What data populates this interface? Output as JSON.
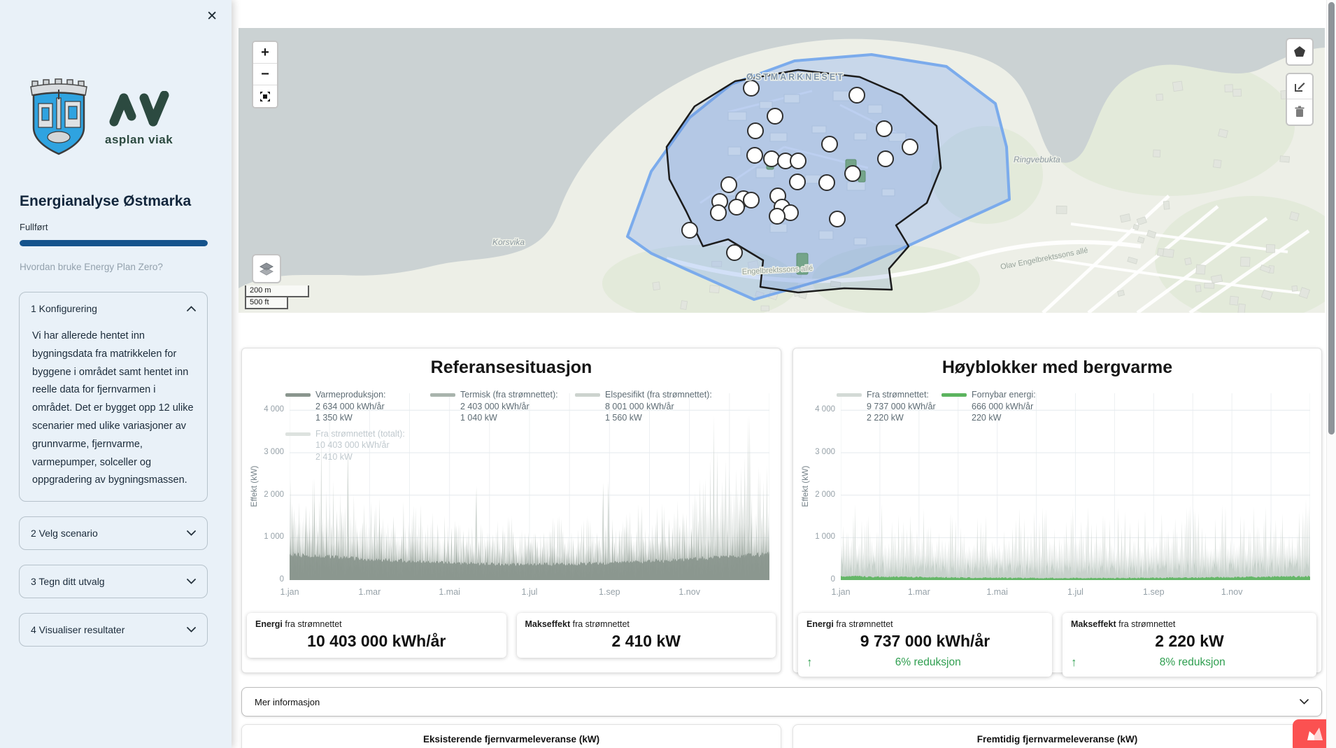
{
  "sidebar": {
    "close_label": "✕",
    "brand_logo_text": "asplan viak",
    "title": "Energianalyse Østmarka",
    "status_label": "Fullført",
    "progress_percent": 100,
    "help_link": "Hvordan bruke Energy Plan Zero?",
    "accordions": [
      {
        "label": "1 Konfigurering",
        "expanded": true,
        "body": "Vi har allerede hentet inn bygningsdata fra matrikkelen for byggene i området samt hentet inn reelle data for fjernvarmen i området. Det er bygget opp 12 ulike scenarier med ulike variasjoner av grunnvarme, fjernvarme, varmepumper, solceller og oppgradering av bygningsmassen."
      },
      {
        "label": "2 Velg scenario",
        "expanded": false,
        "body": ""
      },
      {
        "label": "3 Tegn ditt utvalg",
        "expanded": false,
        "body": ""
      },
      {
        "label": "4 Visualiser resultater",
        "expanded": false,
        "body": ""
      }
    ]
  },
  "map": {
    "zoom_in_label": "+",
    "zoom_out_label": "−",
    "scale_bar": {
      "metric": "200 m",
      "imperial": "500 ft"
    },
    "place_labels": [
      {
        "text": "ØSTMARKNESET",
        "kind": "area"
      },
      {
        "text": "Ringvebukta",
        "kind": "water"
      },
      {
        "text": "Korsvika",
        "kind": "water"
      },
      {
        "text": "Engelbrektssons allé",
        "kind": "street"
      },
      {
        "text": "Olav Engelbrektssons allé",
        "kind": "street"
      }
    ],
    "marker_count": 28,
    "selection_color": "#7babec"
  },
  "chart_data": [
    {
      "type": "area",
      "title": "Referansesituasjon",
      "ylabel": "Effekt (kW)",
      "ylim": [
        0,
        4400
      ],
      "yticks": [
        "0",
        "1 000",
        "2 000",
        "3 000",
        "4 000"
      ],
      "ytick_values": [
        0,
        1000,
        2000,
        3000,
        4000
      ],
      "xticks": [
        "1.jan",
        "1.mar",
        "1.mai",
        "1.jul",
        "1.sep",
        "1.nov"
      ],
      "grid": true,
      "legend_position": "top",
      "series": [
        {
          "name": "Varmeproduksjon:",
          "annual_energy": "2 634 000 kWh/år",
          "peak_power": "1 350 kW",
          "color": "#8a968e",
          "enabled": true
        },
        {
          "name": "Termisk (fra strømnettet):",
          "annual_energy": "2 403 000 kWh/år",
          "peak_power": "1 040 kW",
          "color": "#a9b4ad",
          "enabled": true
        },
        {
          "name": "Elspesifikt (fra strømnettet):",
          "annual_energy": "8 001 000 kWh/år",
          "peak_power": "1 560 kW",
          "color": "#ccd3ce",
          "enabled": true
        },
        {
          "name": "Fra strømnettet (totalt):",
          "annual_energy": "10 403 000 kWh/år",
          "peak_power": "2 410 kW",
          "color": "#dde2df",
          "enabled": false
        }
      ],
      "summary_stats": [
        {
          "label_bold": "Energi",
          "label_rest": " fra strømnettet",
          "value": "10 403 000 kWh/år"
        },
        {
          "label_bold": "Makseffekt",
          "label_rest": " fra strømnettet",
          "value": "2 410 kW"
        }
      ]
    },
    {
      "type": "area",
      "title": "Høyblokker med bergvarme",
      "ylabel": "Effekt (kW)",
      "ylim": [
        0,
        4400
      ],
      "yticks": [
        "0",
        "1 000",
        "2 000",
        "3 000",
        "4 000"
      ],
      "ytick_values": [
        0,
        1000,
        2000,
        3000,
        4000
      ],
      "xticks": [
        "1.jan",
        "1.mar",
        "1.mai",
        "1.jul",
        "1.sep",
        "1.nov"
      ],
      "grid": true,
      "legend_position": "top",
      "series": [
        {
          "name": "Fra strømnettet:",
          "annual_energy": "9 737 000 kWh/år",
          "peak_power": "2 220 kW",
          "color": "#d3dad6",
          "enabled": true
        },
        {
          "name": "Fornybar energi:",
          "annual_energy": "666 000 kWh/år",
          "peak_power": "220 kW",
          "color": "#5cb45f",
          "enabled": true
        }
      ],
      "summary_stats": [
        {
          "label_bold": "Energi",
          "label_rest": " fra strømnettet",
          "value": "9 737 000 kWh/år",
          "delta": "6% reduksjon",
          "delta_direction": "up"
        },
        {
          "label_bold": "Makseffekt",
          "label_rest": " fra strømnettet",
          "value": "2 220 kW",
          "delta": "8% reduksjon",
          "delta_direction": "up"
        }
      ]
    }
  ],
  "more_info_label": "Mer informasjon",
  "bottom_sections": [
    {
      "title": "Eksisterende fjernvarmeleveranse (kW)"
    },
    {
      "title": "Fremtidig fjernvarmeleveranse (kW)"
    }
  ],
  "colors": {
    "accent_blue": "#15538c",
    "positive_green": "#2e9e4f",
    "brand_red": "#fb5151",
    "series_green": "#5cb45f"
  }
}
